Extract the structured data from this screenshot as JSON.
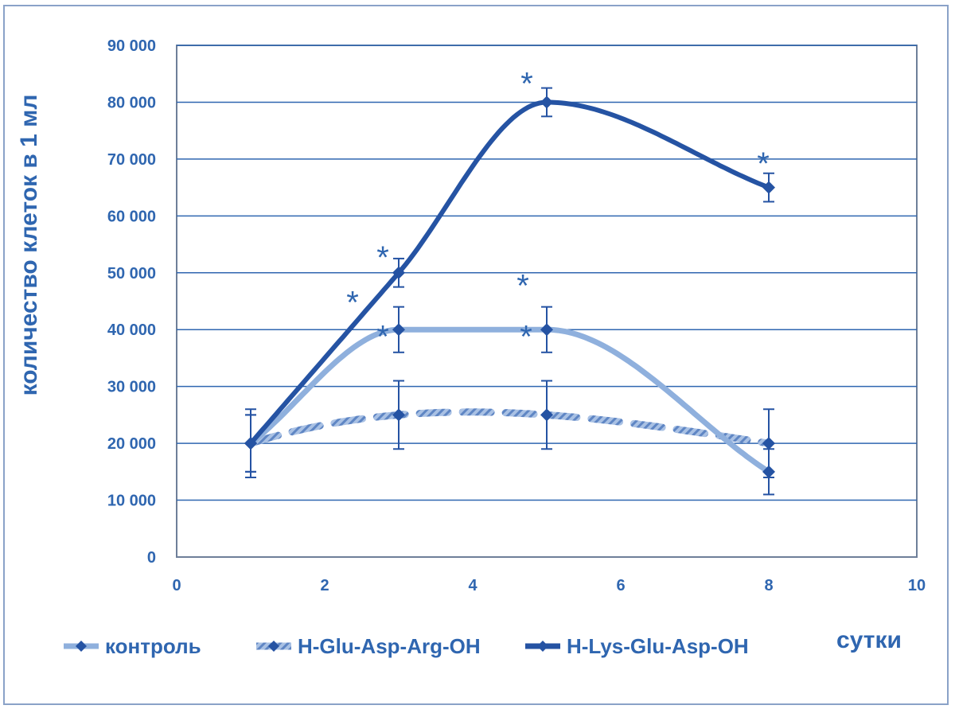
{
  "chart_data": {
    "type": "line",
    "xlabel": "сутки",
    "ylabel": "количество клеток в 1 мл",
    "xlim": [
      0,
      10
    ],
    "ylim": [
      0,
      90000
    ],
    "xticks": [
      0,
      2,
      4,
      6,
      8,
      10
    ],
    "yticks": [
      0,
      10000,
      20000,
      30000,
      40000,
      50000,
      60000,
      70000,
      80000,
      90000
    ],
    "ytick_labels": [
      "0",
      "10 000",
      "20 000",
      "30 000",
      "40 000",
      "50 000",
      "60 000",
      "70 000",
      "80 000",
      "90 000"
    ],
    "grid": "horizontal",
    "legend_position": "bottom",
    "series": [
      {
        "name": "контроль",
        "color": "#8fb0dd",
        "style": "solid",
        "x": [
          1,
          3,
          5,
          8
        ],
        "values": [
          20000,
          40000,
          40000,
          15000
        ],
        "errors": [
          6000,
          4000,
          4000,
          4000
        ],
        "significant": [
          false,
          true,
          true,
          false
        ]
      },
      {
        "name": "H-Glu-Asp-Arg-OH",
        "color": "#8fb0dd",
        "style": "dashed",
        "x": [
          1,
          3,
          5,
          8
        ],
        "values": [
          20000,
          25000,
          25000,
          20000
        ],
        "errors": [
          5000,
          6000,
          6000,
          6000
        ],
        "significant": [
          false,
          true,
          true,
          false
        ]
      },
      {
        "name": "H-Lys-Glu-Asp-OH",
        "color": "#2553a3",
        "style": "solid",
        "x": [
          1,
          3,
          5,
          8
        ],
        "values": [
          20000,
          50000,
          80000,
          65000
        ],
        "errors": [
          5000,
          2500,
          2500,
          2500
        ],
        "significant": [
          false,
          true,
          true,
          true
        ]
      }
    ],
    "annotation_mark": "*"
  }
}
